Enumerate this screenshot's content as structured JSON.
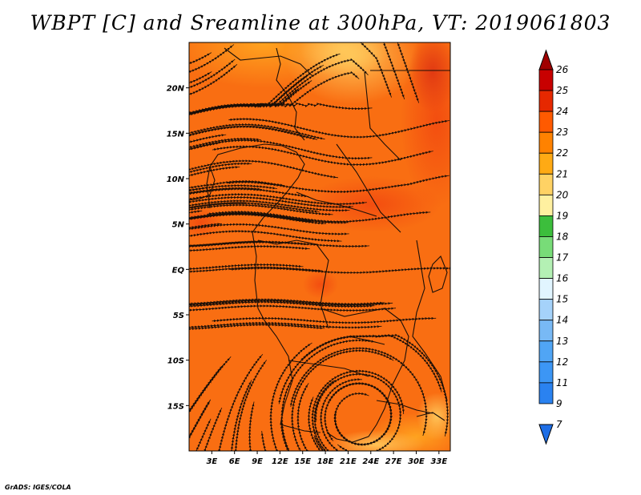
{
  "title": "WBPT [C] and Sreamline at 300hPa, VT: 2019061803",
  "credit": "GrADS: IGES/COLA",
  "map": {
    "lat_labels": [
      "20N",
      "15N",
      "10N",
      "5N",
      "EQ",
      "5S",
      "10S",
      "15S"
    ],
    "lon_labels": [
      "3E",
      "6E",
      "9E",
      "12E",
      "15E",
      "18E",
      "21E",
      "24E",
      "27E",
      "30E",
      "33E"
    ],
    "lat_range": [
      -20,
      25
    ],
    "lon_range": [
      0,
      34.5
    ]
  },
  "colorbar": {
    "labels": [
      "7",
      "9",
      "11",
      "12",
      "13",
      "14",
      "15",
      "16",
      "17",
      "18",
      "19",
      "20",
      "21",
      "22",
      "23",
      "24",
      "25",
      "26"
    ],
    "colors": [
      "#1e6ee6",
      "#2a82f0",
      "#3c96f5",
      "#50a5f5",
      "#78b9f5",
      "#a5d2fa",
      "#e1f5ff",
      "#b4f0b4",
      "#78dc78",
      "#3cbe3c",
      "#fff0a0",
      "#ffd264",
      "#ffaa14",
      "#ff8200",
      "#ff5a00",
      "#e62800",
      "#c80000",
      "#a00000"
    ]
  }
}
